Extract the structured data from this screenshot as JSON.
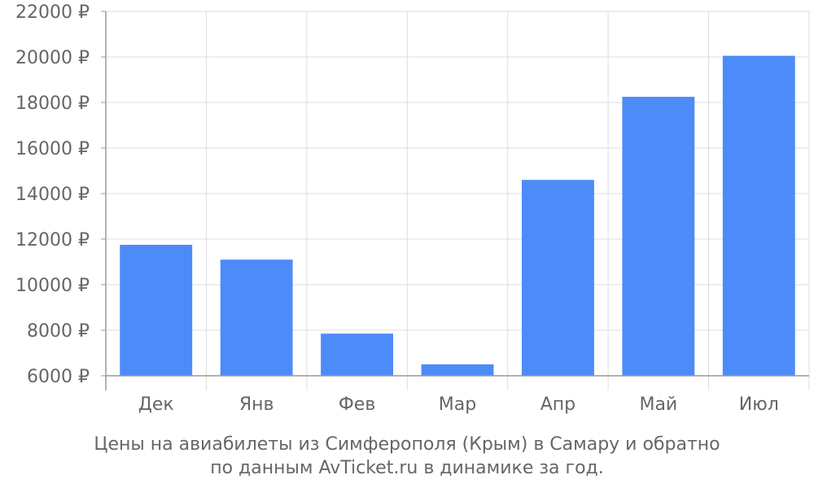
{
  "chart_data": {
    "type": "bar",
    "categories": [
      "Дек",
      "Янв",
      "Фев",
      "Мар",
      "Апр",
      "Май",
      "Июл"
    ],
    "values": [
      11750,
      11100,
      7850,
      6500,
      14600,
      18250,
      20050
    ],
    "ylim": [
      6000,
      22000
    ],
    "yticks": [
      6000,
      8000,
      10000,
      12000,
      14000,
      16000,
      18000,
      20000,
      22000
    ],
    "ytick_suffix": " ₽",
    "grid": true,
    "bar_color": "#4d8bf9",
    "grid_color": "#dddddd",
    "axis_color": "#999999",
    "text_color": "#666666"
  },
  "caption": {
    "line1": "Цены на авиабилеты из Симферополя (Крым) в Самару и обратно",
    "line2": "по данным AvTicket.ru в динамике за год."
  }
}
